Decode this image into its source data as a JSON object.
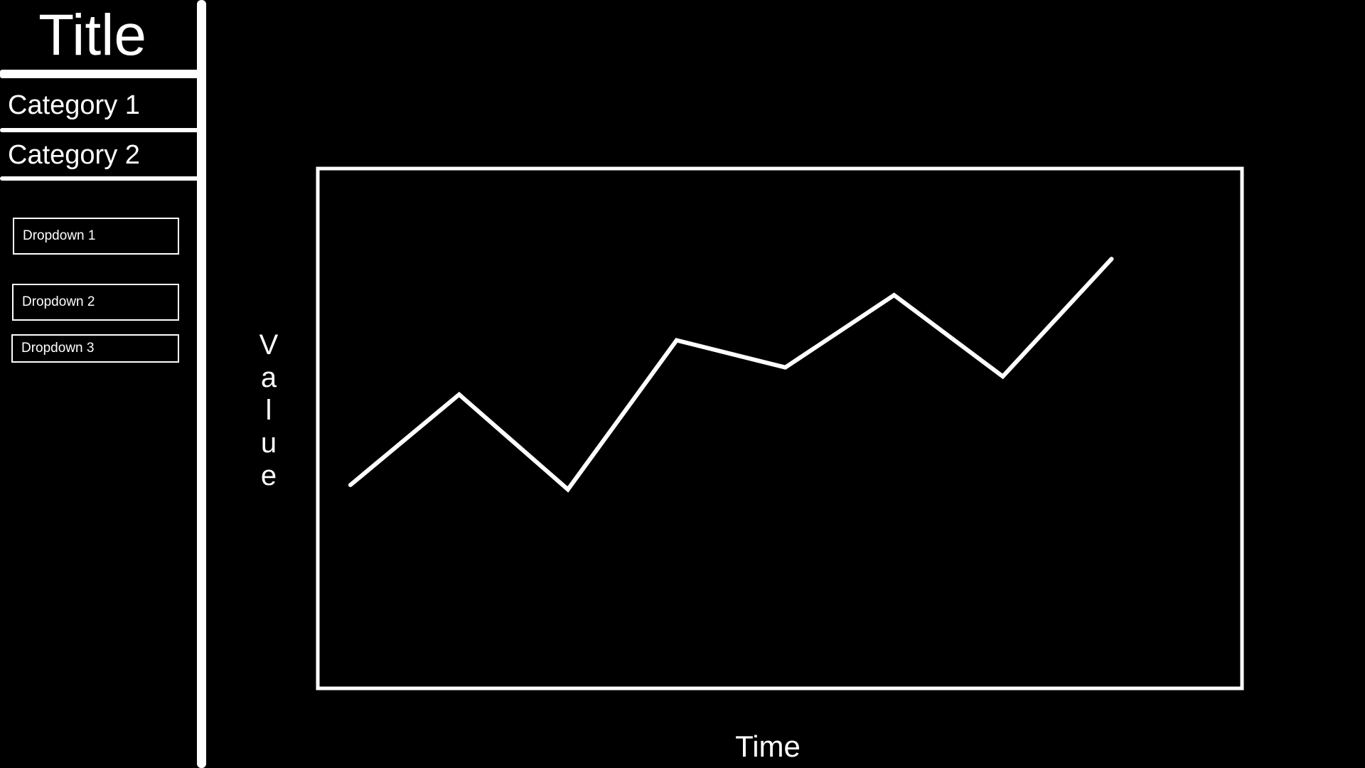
{
  "sidebar": {
    "title": "Title",
    "categories": [
      {
        "label": "Category 1"
      },
      {
        "label": "Category 2"
      }
    ],
    "dropdowns": [
      {
        "label": "Dropdown 1"
      },
      {
        "label": "Dropdown 2"
      },
      {
        "label": "Dropdown 3"
      }
    ]
  },
  "colors": {
    "background": "#000000",
    "foreground": "#ffffff"
  },
  "chart_data": {
    "type": "line",
    "title": "",
    "xlabel": "Time",
    "ylabel": "Value",
    "x": [
      1,
      2,
      3,
      4,
      5,
      6,
      7,
      8
    ],
    "series": [
      {
        "values": [
          2.0,
          4.0,
          1.9,
          5.2,
          4.6,
          6.2,
          4.4,
          7.0
        ]
      }
    ],
    "xlim": [
      0.7,
      9.2
    ],
    "ylim": [
      -2.5,
      9.0
    ],
    "grid": false,
    "legend": "none",
    "ticks": false
  }
}
